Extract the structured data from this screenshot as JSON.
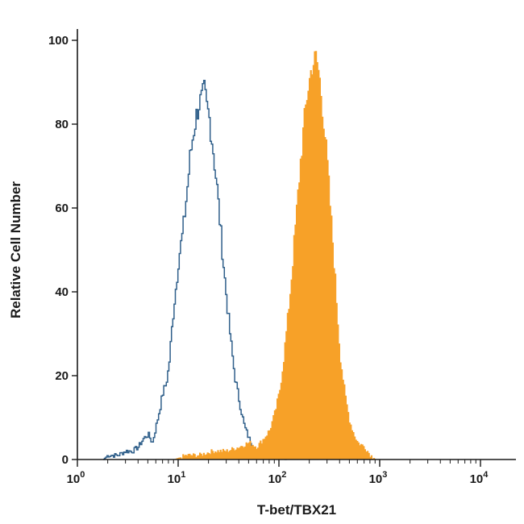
{
  "chart_data": {
    "type": "area",
    "xlabel": "T-bet/TBX21",
    "ylabel": "Relative Cell Number",
    "x_scale": "log",
    "xlim": [
      1,
      10000
    ],
    "ylim": [
      0,
      100
    ],
    "x_ticks": [
      {
        "value": 1,
        "base": "10",
        "exp": "0"
      },
      {
        "value": 10,
        "base": "10",
        "exp": "1"
      },
      {
        "value": 100,
        "base": "10",
        "exp": "2"
      },
      {
        "value": 1000,
        "base": "10",
        "exp": "3"
      },
      {
        "value": 10000,
        "base": "10",
        "exp": "4"
      }
    ],
    "y_ticks": [
      {
        "value": 0,
        "label": "0"
      },
      {
        "value": 20,
        "label": "20"
      },
      {
        "value": 40,
        "label": "40"
      },
      {
        "value": 60,
        "label": "60"
      },
      {
        "value": 80,
        "label": "80"
      },
      {
        "value": 100,
        "label": "100"
      }
    ],
    "grid": false,
    "legend": "none",
    "series": [
      {
        "style": "outline",
        "color": "#2f5f8a",
        "x": [
          1.8,
          2.0,
          2.5,
          3.0,
          3.5,
          4.0,
          4.5,
          5.0,
          5.5,
          6.0,
          6.5,
          7.0,
          7.5,
          8.0,
          8.5,
          9.0,
          9.5,
          10.0,
          11.0,
          12.0,
          13.0,
          14.0,
          15.0,
          16.0,
          17.0,
          18.0,
          19.0,
          20.0,
          22.0,
          24.0,
          26.0,
          28.0,
          30.0,
          33.0,
          36.0,
          40.0,
          45.0,
          50.0,
          55.0,
          60.0,
          70.0,
          80.0,
          100.0,
          130.0,
          170.0,
          250.0,
          350.0,
          450.0,
          500.0
        ],
        "y": [
          0,
          1,
          1,
          2,
          2,
          3,
          5,
          6,
          4,
          8,
          12,
          16,
          18,
          22,
          30,
          37,
          42,
          48,
          54,
          63,
          72,
          78,
          82,
          85,
          86,
          88,
          84,
          82,
          74,
          65,
          55,
          46,
          38,
          28,
          20,
          14,
          8,
          5,
          3,
          2,
          1,
          1,
          0,
          1,
          1,
          1,
          1,
          1,
          0
        ]
      },
      {
        "style": "filled",
        "color": "#f7a128",
        "x": [
          9.0,
          12.0,
          16.0,
          22.0,
          30.0,
          40.0,
          50.0,
          60.0,
          70.0,
          80.0,
          90.0,
          100.0,
          110.0,
          120.0,
          130.0,
          140.0,
          150.0,
          160.0,
          170.0,
          180.0,
          190.0,
          200.0,
          210.0,
          220.0,
          230.0,
          240.0,
          250.0,
          260.0,
          280.0,
          300.0,
          320.0,
          340.0,
          360.0,
          380.0,
          400.0,
          450.0,
          500.0,
          550.0,
          600.0,
          700.0,
          800.0,
          900.0
        ],
        "y": [
          0,
          1,
          1,
          2,
          2,
          3,
          4,
          3,
          5,
          7,
          11,
          16,
          24,
          33,
          42,
          52,
          61,
          70,
          77,
          83,
          88,
          91,
          94,
          95,
          96,
          94,
          91,
          87,
          79,
          70,
          60,
          51,
          42,
          33,
          25,
          15,
          9,
          6,
          4,
          3,
          1,
          0
        ]
      }
    ]
  }
}
